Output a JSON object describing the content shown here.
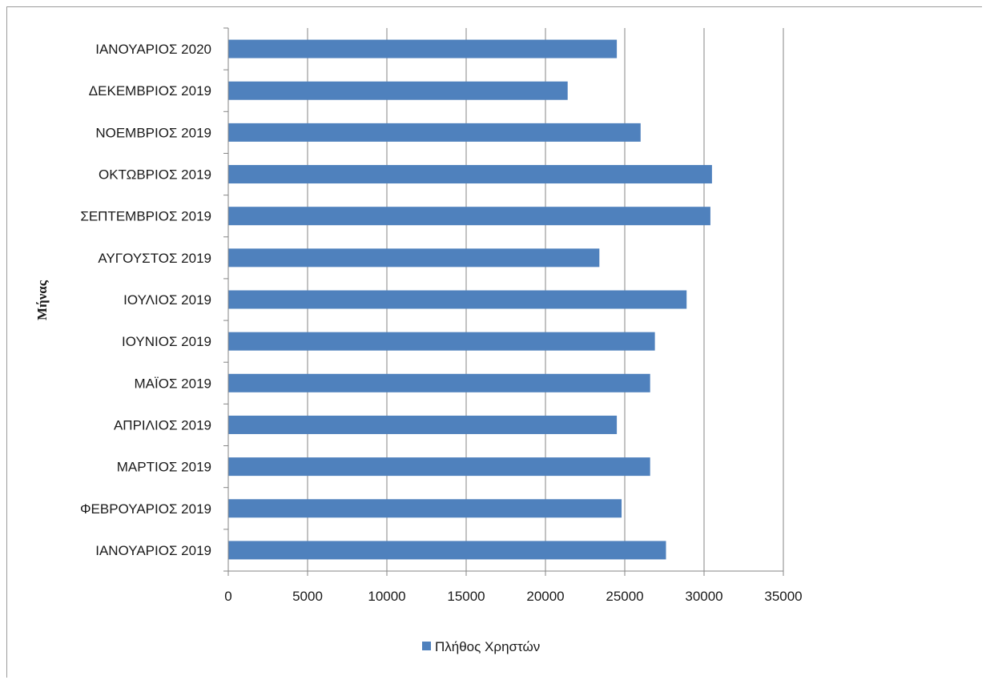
{
  "chart_data": {
    "type": "bar",
    "orientation": "horizontal",
    "categories": [
      "ΙΑΝΟΥΑΡΙΟΣ 2019",
      "ΦΕΒΡΟΥΑΡΙΟΣ 2019",
      "ΜΑΡΤΙΟΣ 2019",
      "ΑΠΡΙΛΙΟΣ 2019",
      "ΜΑΪΟΣ 2019",
      "ΙΟΥΝΙΟΣ 2019",
      "ΙΟΥΛΙΟΣ 2019",
      "ΑΥΓΟΥΣΤΟΣ 2019",
      "ΣΕΠΤΕΜΒΡΙΟΣ 2019",
      "ΟΚΤΩΒΡΙΟΣ 2019",
      "ΝΟΕΜΒΡΙΟΣ 2019",
      "ΔΕΚΕΜΒΡΙΟΣ 2019",
      "ΙΑΝΟΥΑΡΙΟΣ 2020"
    ],
    "series": [
      {
        "name": "Πλήθος Χρηστών",
        "color": "#4f81bd",
        "values": [
          27600,
          24800,
          26600,
          24500,
          26600,
          26900,
          28900,
          23400,
          30400,
          30500,
          26000,
          21400,
          24500
        ]
      }
    ],
    "xlim": [
      0,
      35000
    ],
    "x_ticks": [
      "0",
      "5000",
      "10000",
      "15000",
      "20000",
      "25000",
      "30000",
      "35000"
    ],
    "ylabel": "Μήνας",
    "xlabel": "",
    "grid": true,
    "legend_position": "bottom"
  }
}
